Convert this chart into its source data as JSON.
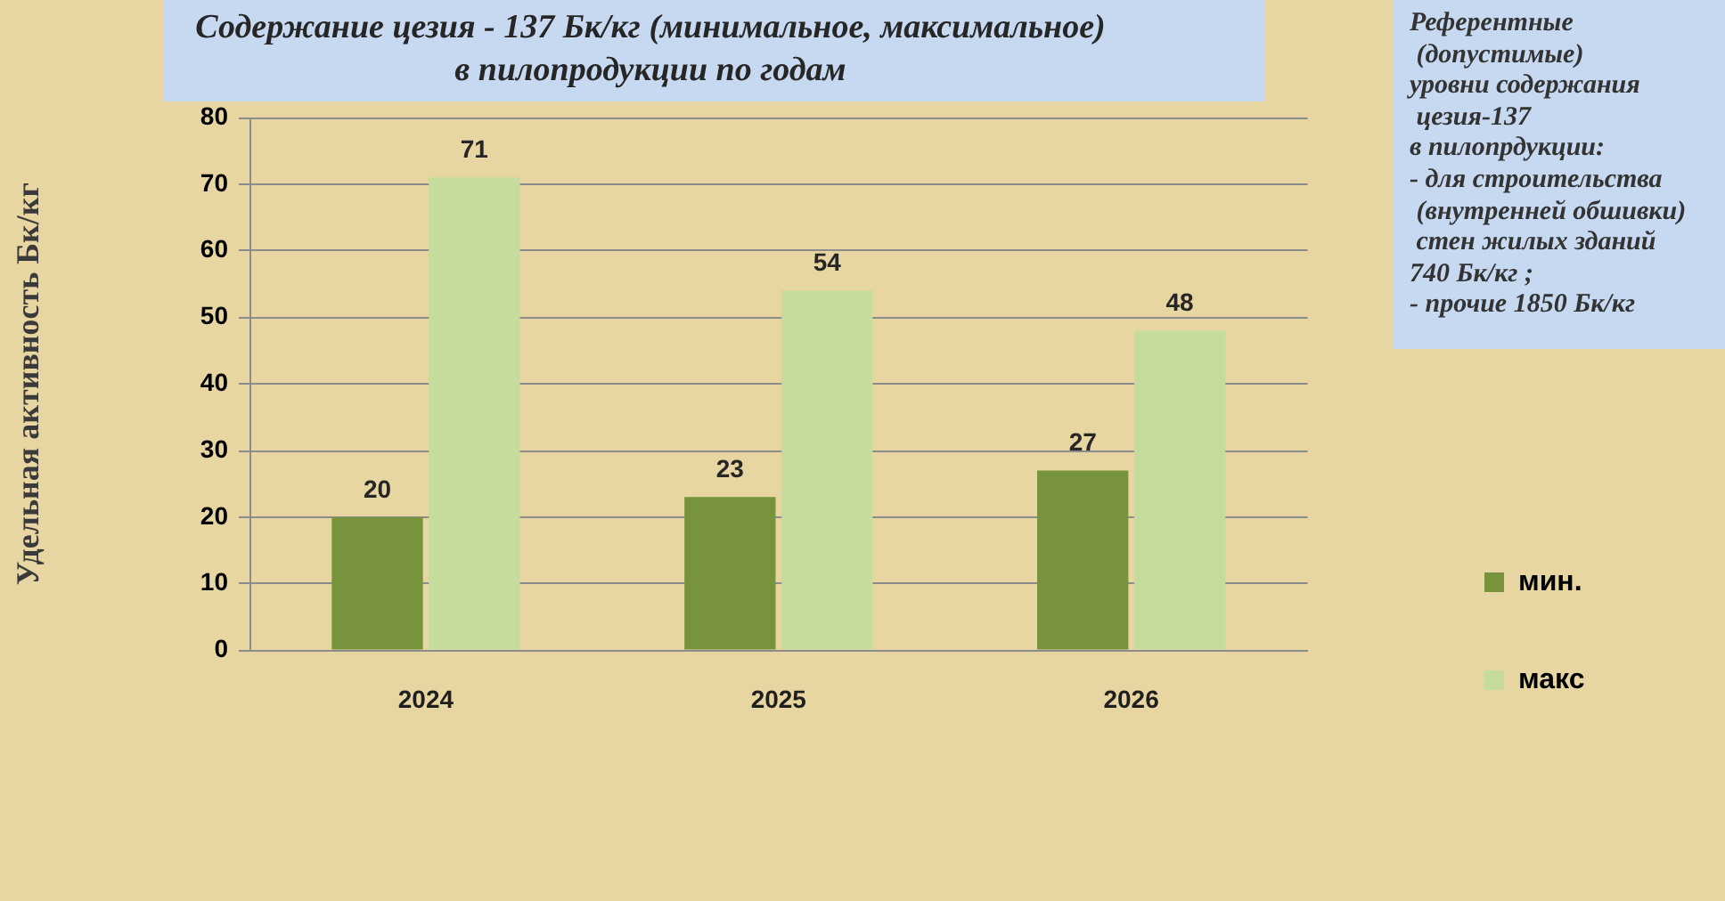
{
  "chart_data": {
    "type": "bar",
    "title": "Содержание цезия - 137 Бк/кг (минимальное, максимальное)\nв пилопродукции по годам",
    "ylabel": "Удельная активность Бк/кг",
    "categories": [
      "2024",
      "2025",
      "2026"
    ],
    "series": [
      {
        "name": "мин.",
        "color": "#77933c",
        "values": [
          20,
          23,
          27
        ]
      },
      {
        "name": "макс",
        "color": "#c4dc9c",
        "values": [
          71,
          54,
          48
        ]
      }
    ],
    "ylim": [
      0,
      80
    ],
    "yticks": [
      0,
      10,
      20,
      30,
      40,
      50,
      60,
      70,
      80
    ],
    "grid": "y",
    "legend": "right",
    "data_labels": true,
    "annotations": [
      "Референтные\n (допустимые)\nуровни содержания\n цезия-137\nв пилопрдукции:\n- для строительства\n (внутренней обшивки)\n стен жилых зданий\n740 Бк/кг ;\n- прочие 1850 Бк/кг"
    ]
  }
}
